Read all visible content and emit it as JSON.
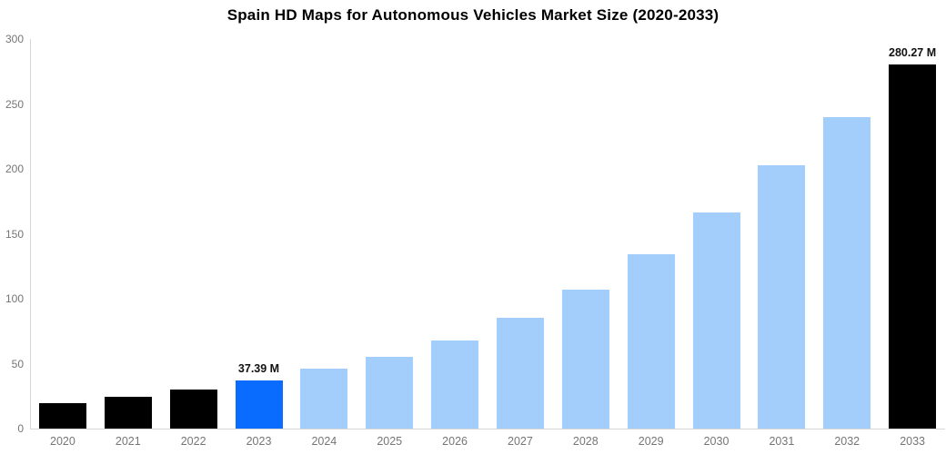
{
  "title": "Spain HD Maps for Autonomous Vehicles Market Size (2020-2033)",
  "colors": {
    "historical_bar": "#000000",
    "current_bar": "#0a6cff",
    "forecast_bar": "#a3cdfb",
    "axis_line": "#d6d6d6",
    "tick_label": "#757575",
    "annotation_text": "#111111",
    "background": "#ffffff"
  },
  "chart_data": {
    "type": "bar",
    "title": "Spain HD Maps for Autonomous Vehicles Market Size (2020-2033)",
    "categories": [
      "2020",
      "2021",
      "2022",
      "2023",
      "2024",
      "2025",
      "2026",
      "2027",
      "2028",
      "2029",
      "2030",
      "2031",
      "2032",
      "2033"
    ],
    "values": [
      19.5,
      24.8,
      30.2,
      37.39,
      46,
      55.5,
      68,
      85.5,
      107,
      134,
      166.5,
      203,
      240,
      280.27
    ],
    "bar_color_roles": [
      "historical",
      "historical",
      "historical",
      "current",
      "forecast",
      "forecast",
      "forecast",
      "forecast",
      "forecast",
      "forecast",
      "forecast",
      "forecast",
      "forecast",
      "historical"
    ],
    "annotations": [
      {
        "category": "2023",
        "label": "37.39 M"
      },
      {
        "category": "2033",
        "label": "280.27 M"
      }
    ],
    "xlabel": "",
    "ylabel": "",
    "ylim": [
      0,
      300
    ],
    "yticks": [
      0,
      50,
      100,
      150,
      200,
      250,
      300
    ],
    "grid": false,
    "legend": false
  }
}
